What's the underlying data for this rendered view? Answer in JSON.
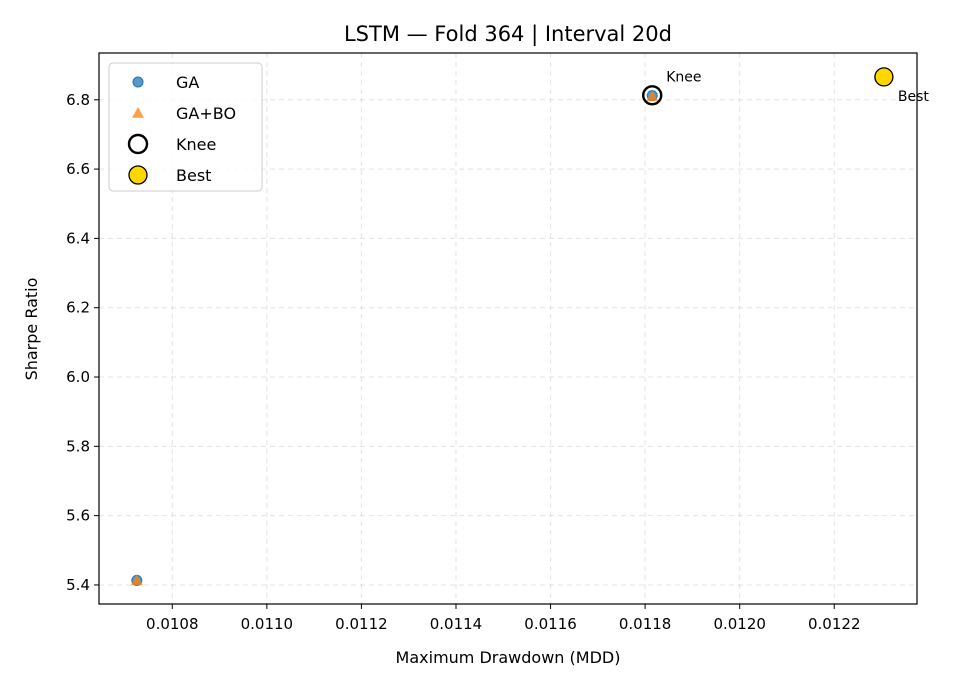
{
  "chart_data": {
    "type": "scatter",
    "title": "LSTM — Fold 364 | Interval 20d",
    "xlabel": "Maximum Drawdown (MDD)",
    "ylabel": "Sharpe Ratio",
    "xlim": [
      0.010645,
      0.012375
    ],
    "ylim": [
      5.345,
      6.935
    ],
    "xticks": [
      0.0108,
      0.011,
      0.0112,
      0.0114,
      0.0116,
      0.0118,
      0.012,
      0.0122
    ],
    "xtick_labels": [
      "0.0108",
      "0.0110",
      "0.0112",
      "0.0114",
      "0.0116",
      "0.0118",
      "0.0120",
      "0.0122"
    ],
    "yticks": [
      5.4,
      5.6,
      5.8,
      6.0,
      6.2,
      6.4,
      6.6,
      6.8
    ],
    "ytick_labels": [
      "5.4",
      "5.6",
      "5.8",
      "6.0",
      "6.2",
      "6.4",
      "6.6",
      "6.8"
    ],
    "grid": true,
    "legend_position": "top-left",
    "series": [
      {
        "name": "GA",
        "marker": "circle",
        "color": "#1f77b4",
        "points": [
          {
            "x": 0.010725,
            "y": 5.413
          },
          {
            "x": 0.011815,
            "y": 6.812
          }
        ]
      },
      {
        "name": "GA+BO",
        "marker": "triangle",
        "color": "#ff7f0e",
        "points": [
          {
            "x": 0.010725,
            "y": 5.413
          },
          {
            "x": 0.011815,
            "y": 6.81
          }
        ]
      },
      {
        "name": "Knee",
        "marker": "open-circle",
        "color": "#000000",
        "points": [
          {
            "x": 0.011815,
            "y": 6.813
          }
        ]
      },
      {
        "name": "Best",
        "marker": "filled-circle",
        "color": "#ffd700",
        "points": [
          {
            "x": 0.012305,
            "y": 6.866
          }
        ]
      }
    ],
    "annotations": [
      {
        "text": "Knee",
        "x": 0.011815,
        "y": 6.813
      },
      {
        "text": "Best",
        "x": 0.012305,
        "y": 6.866
      }
    ]
  }
}
